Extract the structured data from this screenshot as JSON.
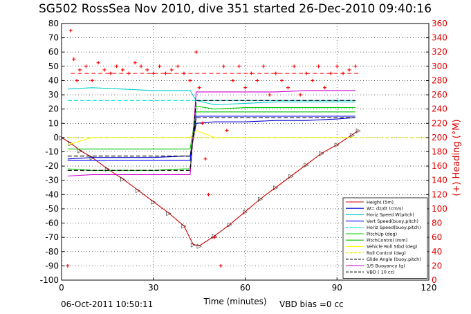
{
  "chart_data": {
    "type": "line",
    "title": "SG502 RossSea Nov 2010, dive 351 started 26-Dec-2010 09:40:16",
    "xlabel": "Time (minutes)",
    "ylabel_right": "(+) Heading (°M)",
    "xlim": [
      0,
      120
    ],
    "ylim": [
      -100,
      80
    ],
    "ylim_right": [
      0,
      360
    ],
    "x_ticks": [
      0,
      30,
      60,
      90,
      120
    ],
    "y_ticks": [
      -100,
      -90,
      -80,
      -70,
      -60,
      -50,
      -40,
      -30,
      -20,
      -10,
      0,
      10,
      20,
      30,
      40,
      50,
      60,
      70,
      80
    ],
    "y_ticks_right": [
      0,
      20,
      40,
      60,
      80,
      100,
      120,
      140,
      160,
      180,
      200,
      220,
      240,
      260,
      280,
      300,
      320,
      340,
      360
    ],
    "grid": true,
    "legend_position": "bottom-right",
    "footer_left": "06-Oct-2011 10:50:11",
    "footer_right": "VBD bias =0 cc",
    "colors": {
      "height": "#cc0000",
      "w": "#0000cc",
      "horiz_speed_w": "#00cccc",
      "vert_speed_buoy": "#0000ff",
      "horiz_speed_buoy": "#00dddd",
      "pitch_up": "#00cc00",
      "pitch_control": "#00bb00",
      "roll": "#ffff00",
      "roll_control": "#dddd00",
      "glide_angle": "#000000",
      "buoyancy": "#cc00cc",
      "vbd": "#000000",
      "heading": "#ff0000"
    },
    "legend": [
      "Height (5m)",
      "W= dz/dt (cm/s)",
      "Horiz Speed W(pitch)",
      "Vert Speed(buoy,pitch)",
      "Horiz Speed(buoy,pitch)",
      "PitchUp (deg)",
      "PitchControl (mm)",
      "Vehicle Roll Stbd (deg)",
      "Roll Control (deg)",
      "Glide Angle (buoy,pitch)",
      "1/5 Buoyancy (g)",
      "VBD ( 10 cc)"
    ],
    "series": [
      {
        "name": "Height (5m)",
        "x": [
          0,
          3,
          6,
          10,
          15,
          20,
          25,
          30,
          35,
          40,
          43,
          45,
          50,
          55,
          60,
          65,
          70,
          75,
          80,
          85,
          90,
          95,
          97
        ],
        "y": [
          0,
          -4,
          -9,
          -14,
          -22,
          -29,
          -37,
          -45,
          -53,
          -62,
          -75,
          -76,
          -69,
          -61,
          -52,
          -43,
          -35,
          -27,
          -19,
          -11,
          -5,
          2,
          5
        ]
      },
      {
        "name": "W= dz/dt (cm/s)",
        "x": [
          2,
          10,
          20,
          30,
          40,
          42,
          44,
          50,
          60,
          70,
          80,
          90,
          96
        ],
        "y": [
          -15,
          -14,
          -14,
          -14,
          -13,
          -13,
          10,
          11,
          11,
          12,
          12,
          13,
          14
        ]
      },
      {
        "name": "Horiz Speed W(pitch)",
        "x": [
          2,
          10,
          20,
          30,
          40,
          42,
          44,
          50,
          60,
          70,
          80,
          90,
          96
        ],
        "y": [
          34,
          35,
          34,
          33,
          33,
          33,
          26,
          23,
          24,
          25,
          25,
          25,
          25
        ]
      },
      {
        "name": "Vert Speed(buoy,pitch)",
        "x": [
          2,
          10,
          20,
          30,
          40,
          42,
          44,
          50,
          60,
          70,
          80,
          90,
          96
        ],
        "y": [
          -16,
          -16,
          -16,
          -16,
          -16,
          -16,
          15,
          15,
          15,
          15,
          15,
          15,
          15
        ]
      },
      {
        "name": "Horiz Speed(buoy,pitch)",
        "x": [
          2,
          10,
          20,
          30,
          40,
          42,
          44,
          50,
          60,
          70,
          80,
          90,
          96
        ],
        "y": [
          26,
          26,
          26,
          26,
          26,
          26,
          26,
          26,
          26,
          26,
          26,
          26,
          26
        ]
      },
      {
        "name": "PitchUp (deg)",
        "x": [
          2,
          10,
          20,
          30,
          40,
          42,
          44,
          50,
          60,
          70,
          80,
          90,
          96
        ],
        "y": [
          -22,
          -23,
          -23,
          -23,
          -22,
          -22,
          22,
          20,
          21,
          21,
          21,
          21,
          21
        ]
      },
      {
        "name": "PitchControl (mm)",
        "x": [
          2,
          10,
          20,
          30,
          40,
          42,
          44,
          50,
          60,
          70,
          80,
          90,
          96
        ],
        "y": [
          -8,
          -8,
          -8,
          -8,
          -8,
          -8,
          18,
          18,
          18,
          18,
          18,
          18,
          18
        ]
      },
      {
        "name": "Vehicle Roll Stbd (deg)",
        "x": [
          2,
          10,
          20,
          30,
          40,
          42,
          44,
          50,
          60,
          70,
          80,
          90,
          96
        ],
        "y": [
          -5,
          0,
          0,
          0,
          0,
          0,
          5,
          0,
          0,
          0,
          0,
          0,
          0
        ]
      },
      {
        "name": "Roll Control (deg)",
        "x": [
          2,
          120
        ],
        "y": [
          0,
          0
        ]
      },
      {
        "name": "Glide Angle (buoy,pitch)",
        "x": [
          2,
          10,
          20,
          30,
          40,
          42,
          44,
          50,
          60,
          70,
          80,
          90,
          96
        ],
        "y": [
          -13,
          -13,
          -13,
          -13,
          -13,
          -13,
          14,
          14,
          14,
          14,
          14,
          14,
          14
        ]
      },
      {
        "name": "1/5 Buoyancy (g)",
        "x": [
          2,
          10,
          20,
          30,
          40,
          42,
          44,
          50,
          60,
          70,
          80,
          90,
          96
        ],
        "y": [
          -27,
          -26,
          -26,
          -26,
          -26,
          -26,
          32,
          32,
          32,
          32,
          33,
          33,
          33
        ]
      },
      {
        "name": "VBD ( 10 cc)",
        "x": [
          2,
          10,
          20,
          30,
          40,
          42,
          44,
          50,
          60,
          70,
          80,
          90,
          96
        ],
        "y": [
          -23,
          -23,
          -23,
          -23,
          -23,
          -23,
          26,
          26,
          26,
          26,
          26,
          26,
          26
        ]
      }
    ],
    "heading": {
      "name": "(+) Heading (°M)",
      "x": [
        2,
        3,
        4,
        5,
        6,
        8,
        10,
        12,
        14,
        16,
        18,
        20,
        22,
        24,
        26,
        28,
        30,
        32,
        34,
        36,
        38,
        40,
        42,
        44,
        45,
        46,
        47,
        48,
        50,
        52,
        53,
        54,
        56,
        58,
        60,
        62,
        64,
        66,
        68,
        70,
        72,
        74,
        76,
        78,
        80,
        82,
        84,
        86,
        88,
        90,
        92,
        94,
        96
      ],
      "y": [
        20,
        350,
        310,
        280,
        295,
        300,
        280,
        305,
        295,
        290,
        300,
        295,
        290,
        305,
        300,
        295,
        290,
        300,
        290,
        295,
        300,
        290,
        280,
        320,
        270,
        220,
        170,
        120,
        60,
        20,
        300,
        210,
        280,
        300,
        270,
        290,
        280,
        300,
        260,
        290,
        280,
        270,
        300,
        260,
        290,
        280,
        300,
        270,
        290,
        300,
        290,
        295,
        300
      ]
    },
    "heading_ref": {
      "name": "heading reference",
      "y": 290
    }
  }
}
